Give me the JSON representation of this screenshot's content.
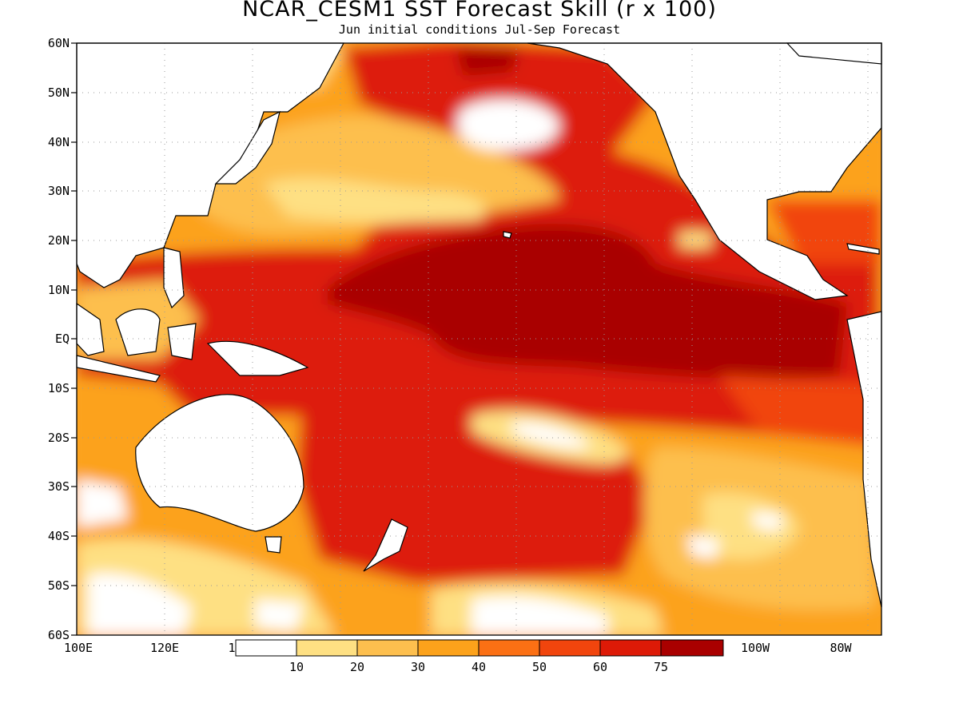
{
  "header": {
    "title": "NCAR_CESM1 SST Forecast Skill (r x 100)",
    "subtitle": "Jun initial conditions  Jul-Sep Forecast"
  },
  "axes": {
    "lat_ticks": [
      "60N",
      "50N",
      "40N",
      "30N",
      "20N",
      "10N",
      "EQ",
      "10S",
      "20S",
      "30S",
      "40S",
      "50S",
      "60S"
    ],
    "lon_ticks": [
      "100E",
      "120E",
      "100W",
      "80W"
    ],
    "lon_partial": "1"
  },
  "colorbar": {
    "labels": [
      "10",
      "20",
      "30",
      "40",
      "50",
      "60",
      "75"
    ],
    "colors": [
      "#ffffff",
      "#fee083",
      "#fdbf4e",
      "#fca21b",
      "#fb7014",
      "#f1450d",
      "#dd1a07",
      "#a90000"
    ]
  },
  "colors": {
    "land": "#ffffff",
    "coast": "#000000",
    "grid": "#9a9a9a"
  }
}
